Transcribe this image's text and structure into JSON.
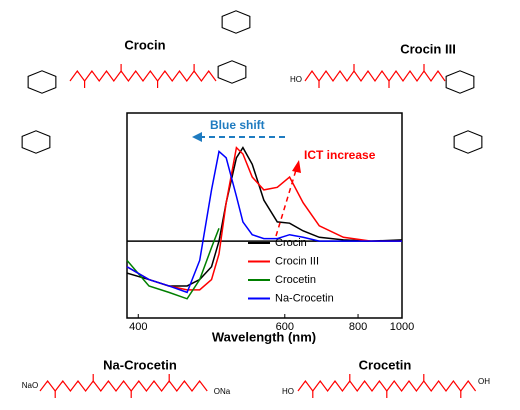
{
  "chart_data": {
    "type": "line",
    "xlabel": "Wavelength (nm)",
    "xscale": "reciprocal",
    "x": [
      390,
      410,
      430,
      450,
      465,
      480,
      490,
      500,
      515,
      525,
      540,
      560,
      585,
      610,
      640,
      680,
      750,
      850,
      1000
    ],
    "series": [
      {
        "name": "Crocin",
        "color": "#000000",
        "values": [
          -0.25,
          -0.3,
          -0.35,
          -0.35,
          -0.3,
          -0.2,
          0,
          0.3,
          0.65,
          0.73,
          0.6,
          0.32,
          0.15,
          0.14,
          0.08,
          0.03,
          0.01,
          0,
          0.01
        ]
      },
      {
        "name": "Crocin III",
        "color": "#ff0000",
        "values": [
          -0.2,
          -0.3,
          -0.35,
          -0.38,
          -0.38,
          -0.3,
          -0.1,
          0.3,
          0.73,
          0.68,
          0.5,
          0.4,
          0.42,
          0.5,
          0.3,
          0.12,
          0.03,
          0,
          0
        ]
      },
      {
        "name": "Crocetin",
        "color": "#007f00",
        "values": [
          -0.15,
          -0.35,
          -0.4,
          -0.45,
          -0.3,
          -0.05,
          0.1,
          null,
          null,
          null,
          null,
          null,
          null,
          null,
          null,
          null,
          null,
          null,
          null
        ]
      },
      {
        "name": "Na-Crocetin",
        "color": "#0000ff",
        "values": [
          -0.2,
          -0.3,
          -0.35,
          -0.4,
          -0.15,
          0.4,
          0.7,
          0.65,
          0.35,
          0.15,
          0.05,
          0.02,
          0.02,
          0.05,
          0.03,
          0,
          0,
          0,
          0
        ]
      }
    ],
    "xlim": [
      390,
      1000
    ],
    "xticks": [
      400,
      600,
      800,
      1000
    ],
    "ylim": [
      -0.6,
      1.0
    ],
    "legend": "lower-right",
    "annotations": {
      "blue_shift": "Blue shift",
      "ict_increase": "ICT increase"
    }
  },
  "structures": {
    "crocin": "Crocin",
    "crocin_iii": "Crocin III",
    "na_crocetin": "Na-Crocetin",
    "crocetin": "Crocetin",
    "na_crocetin_left": "NaO",
    "na_crocetin_right": "ONa",
    "crocetin_left": "HO",
    "crocetin_right": "OH",
    "crocin_iii_left": "HO"
  }
}
